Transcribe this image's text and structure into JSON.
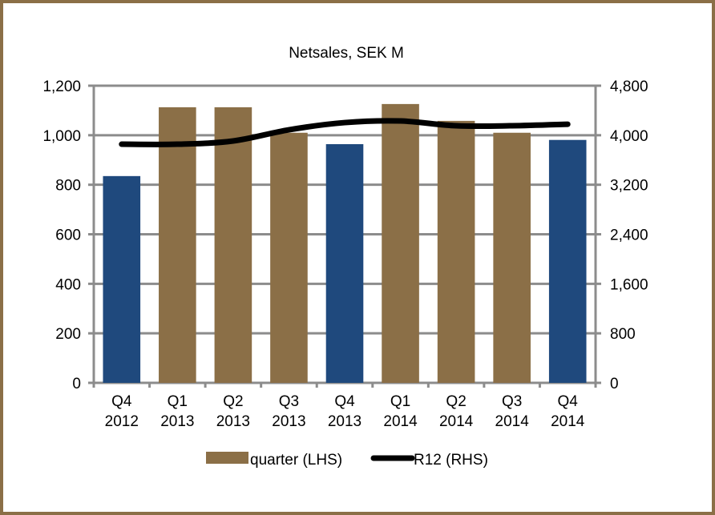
{
  "chart_data": {
    "type": "bar",
    "title": "Netsales, SEK M",
    "categories": [
      [
        "Q4",
        "2012"
      ],
      [
        "Q1",
        "2013"
      ],
      [
        "Q2",
        "2013"
      ],
      [
        "Q3",
        "2013"
      ],
      [
        "Q4",
        "2013"
      ],
      [
        "Q1",
        "2014"
      ],
      [
        "Q2",
        "2014"
      ],
      [
        "Q3",
        "2014"
      ],
      [
        "Q4",
        "2014"
      ]
    ],
    "series": [
      {
        "name": "quarter (LHS)",
        "type": "bar",
        "axis": "left",
        "values": [
          835,
          1113,
          1113,
          1010,
          964,
          1126,
          1058,
          1010,
          981
        ],
        "highlight_q4": true
      },
      {
        "name": "R12 (RHS)",
        "type": "line",
        "axis": "right",
        "values": [
          3855,
          3855,
          3907,
          4088,
          4204,
          4230,
          4153,
          4153,
          4178
        ]
      }
    ],
    "left_axis": {
      "min": 0,
      "max": 1200,
      "ticks": [
        0,
        200,
        400,
        600,
        800,
        1000,
        1200
      ],
      "tick_labels": [
        "0",
        "200",
        "400",
        "600",
        "800",
        "1,000",
        "1,200"
      ]
    },
    "right_axis": {
      "min": 0,
      "max": 4800,
      "ticks": [
        0,
        800,
        1600,
        2400,
        3200,
        4000,
        4800
      ],
      "tick_labels": [
        "0",
        "800",
        "1,600",
        "2,400",
        "3,200",
        "4,000",
        "4,800"
      ]
    },
    "xlabel": "",
    "ylabel": "",
    "grid": true,
    "legend_position": "bottom",
    "colors": {
      "bar_default": "#8B6F47",
      "bar_q4": "#1F497D",
      "line": "#000000",
      "grid": "#8C8C8C",
      "frame": "#8B6F47"
    }
  }
}
